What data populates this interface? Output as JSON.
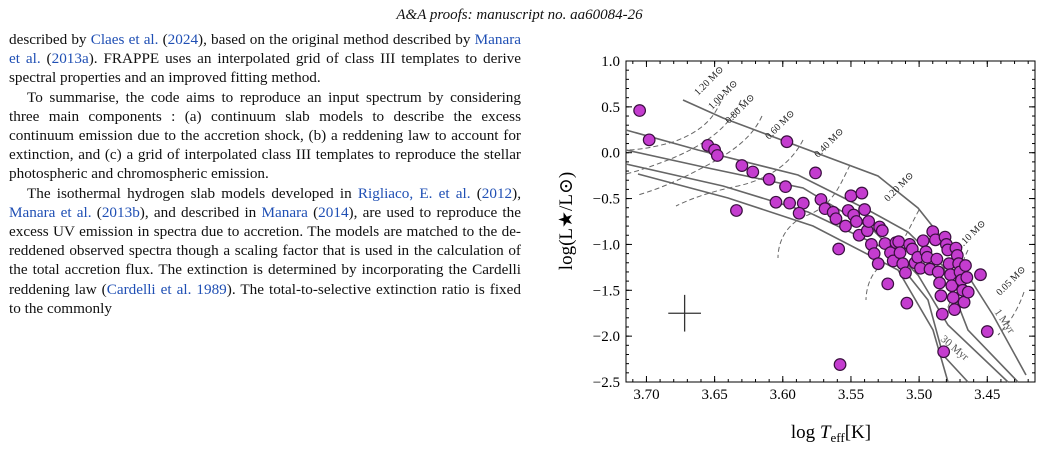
{
  "header": {
    "prefix": "A&A proofs:",
    "text": " manuscript no. aa60084-26"
  },
  "body_text": {
    "p1": {
      "t1": "described by ",
      "c1": "Claes et al.",
      "t2": " (",
      "c1y": "2024",
      "t3": "), based on the original method described by ",
      "c2": "Manara et al.",
      "t4": " (",
      "c2y": "2013a",
      "t5": "). FRAPPE uses an interpolated grid of class III templates to derive spectral properties and an improved fitting method."
    },
    "p2": "To summarise, the code aims to reproduce an input spectrum by considering three main components : (a) continuum slab models to describe the excess continuum emission due to the accretion shock, (b) a reddening law to account for extinction, and (c) a grid of interpolated class III templates to reproduce the stellar photospheric and chromospheric emission.",
    "p3": {
      "t1": "The isothermal hydrogen slab models developed in ",
      "c1": "Rigliaco, E. et al.",
      "t2": " (",
      "c1y": "2012",
      "t3": "), ",
      "c2": "Manara et al.",
      "t4": " (",
      "c2y": "2013b",
      "t5": "), and described in ",
      "c3": "Manara",
      "t6": " (",
      "c3y": "2014",
      "t7": "), are used to reproduce the excess UV emission in spectra due to accretion. The models are matched to the de-reddened observed spectra though a scaling factor that is used in the calculation of the total accretion flux. The extinction is determined by incorporating the Cardelli reddening law (",
      "c4": "Cardelli et al. 1989",
      "t8": "). The total-to-selective extinction ratio is fixed to the commonly"
    }
  },
  "chart_data": {
    "type": "scatter",
    "xlabel": "log T_eff [K]",
    "ylabel": "log(L★/L⊙)",
    "xlim": [
      3.715,
      3.415
    ],
    "ylim": [
      -2.5,
      1.0
    ],
    "x_ticks": [
      "3.70",
      "3.65",
      "3.60",
      "3.55",
      "3.50",
      "3.45"
    ],
    "y_ticks": [
      "1.0",
      "0.5",
      "0.0",
      "−0.5",
      "−1.0",
      "−1.5",
      "−2.0",
      "−2.5"
    ],
    "x_tick_values": [
      3.7,
      3.65,
      3.6,
      3.55,
      3.5,
      3.45
    ],
    "y_tick_values": [
      1.0,
      0.5,
      0.0,
      -0.5,
      -1.0,
      -1.5,
      -2.0,
      -2.5
    ],
    "marker_color": "#c43ccf",
    "marker_edge": "#3a103f",
    "line_color": "#666666",
    "mass_labels": [
      "1.20 M⊙",
      "1.00 M⊙",
      "0.80 M⊙",
      "0.60 M⊙",
      "0.40 M⊙",
      "0.20 M⊙",
      "0.10 M⊙",
      "0.05 M⊙"
    ],
    "isochrone_labels": [
      "1 Myr",
      "30 Myr"
    ],
    "error_bar": {
      "x": 3.672,
      "y": -1.75,
      "dx": 0.012,
      "dy": 0.2
    },
    "points": [
      [
        3.705,
        0.46
      ],
      [
        3.698,
        0.14
      ],
      [
        3.655,
        0.08
      ],
      [
        3.65,
        0.03
      ],
      [
        3.648,
        -0.03
      ],
      [
        3.63,
        -0.14
      ],
      [
        3.622,
        -0.21
      ],
      [
        3.634,
        -0.63
      ],
      [
        3.61,
        -0.29
      ],
      [
        3.597,
        0.12
      ],
      [
        3.598,
        -0.37
      ],
      [
        3.605,
        -0.54
      ],
      [
        3.595,
        -0.55
      ],
      [
        3.585,
        -0.55
      ],
      [
        3.588,
        -0.66
      ],
      [
        3.576,
        -0.22
      ],
      [
        3.572,
        -0.51
      ],
      [
        3.569,
        -0.61
      ],
      [
        3.563,
        -0.65
      ],
      [
        3.561,
        -0.72
      ],
      [
        3.559,
        -1.05
      ],
      [
        3.554,
        -0.8
      ],
      [
        3.552,
        -0.63
      ],
      [
        3.55,
        -0.47
      ],
      [
        3.548,
        -0.68
      ],
      [
        3.546,
        -0.75
      ],
      [
        3.544,
        -0.9
      ],
      [
        3.542,
        -0.44
      ],
      [
        3.54,
        -0.62
      ],
      [
        3.538,
        -0.85
      ],
      [
        3.537,
        -0.75
      ],
      [
        3.535,
        -1.0
      ],
      [
        3.533,
        -1.1
      ],
      [
        3.53,
        -1.21
      ],
      [
        3.529,
        -0.81
      ],
      [
        3.527,
        -0.85
      ],
      [
        3.525,
        -0.99
      ],
      [
        3.523,
        -1.43
      ],
      [
        3.521,
        -1.09
      ],
      [
        3.519,
        -1.18
      ],
      [
        3.517,
        -0.98
      ],
      [
        3.515,
        -0.97
      ],
      [
        3.514,
        -1.09
      ],
      [
        3.512,
        -1.21
      ],
      [
        3.51,
        -1.31
      ],
      [
        3.509,
        -1.64
      ],
      [
        3.507,
        -1.0
      ],
      [
        3.505,
        -1.05
      ],
      [
        3.503,
        -1.2
      ],
      [
        3.501,
        -1.14
      ],
      [
        3.499,
        -1.26
      ],
      [
        3.497,
        -0.96
      ],
      [
        3.495,
        -1.08
      ],
      [
        3.494,
        -1.14
      ],
      [
        3.492,
        -1.27
      ],
      [
        3.49,
        -0.86
      ],
      [
        3.488,
        -0.95
      ],
      [
        3.487,
        -1.16
      ],
      [
        3.486,
        -1.3
      ],
      [
        3.485,
        -1.42
      ],
      [
        3.484,
        -1.56
      ],
      [
        3.483,
        -1.76
      ],
      [
        3.482,
        -2.17
      ],
      [
        3.481,
        -0.92
      ],
      [
        3.48,
        -1.0
      ],
      [
        3.479,
        -1.06
      ],
      [
        3.478,
        -1.21
      ],
      [
        3.477,
        -1.33
      ],
      [
        3.476,
        -1.45
      ],
      [
        3.475,
        -1.58
      ],
      [
        3.474,
        -1.71
      ],
      [
        3.473,
        -1.04
      ],
      [
        3.472,
        -1.12
      ],
      [
        3.471,
        -1.21
      ],
      [
        3.47,
        -1.3
      ],
      [
        3.469,
        -1.39
      ],
      [
        3.468,
        -1.5
      ],
      [
        3.467,
        -1.63
      ],
      [
        3.466,
        -1.23
      ],
      [
        3.465,
        -1.36
      ],
      [
        3.464,
        -1.52
      ],
      [
        3.455,
        -1.33
      ],
      [
        3.45,
        -1.95
      ],
      [
        3.558,
        -2.31
      ]
    ]
  }
}
